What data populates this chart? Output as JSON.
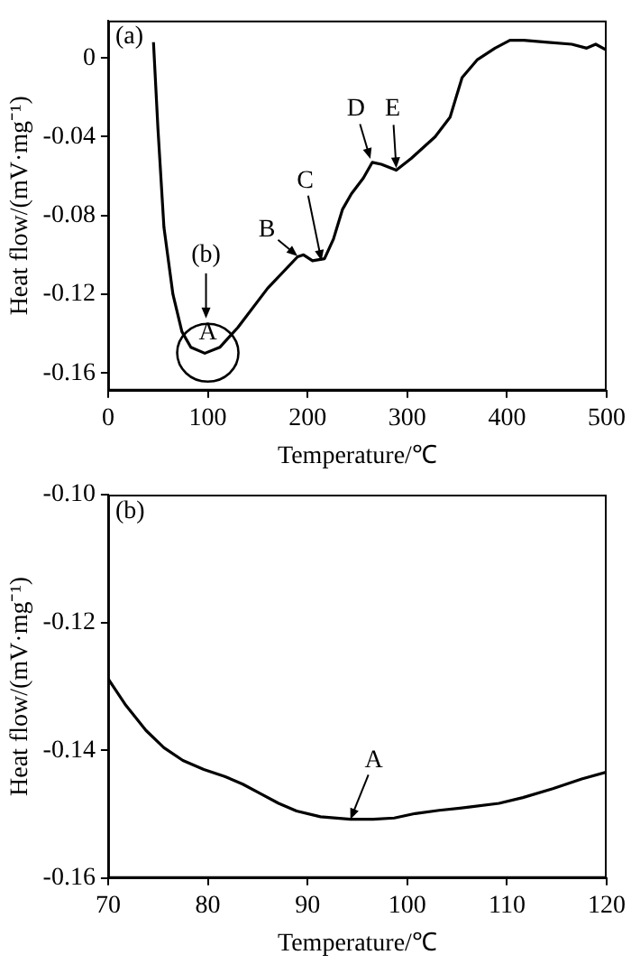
{
  "chart_data": [
    {
      "type": "line",
      "xlabel": "Temperature/℃",
      "ylabel": "Heat flow/(mV·mg⁻¹)",
      "xlim": [
        0,
        500
      ],
      "xticks": [
        0,
        100,
        200,
        300,
        400,
        500
      ],
      "ylim": [
        -0.169,
        0.019
      ],
      "yticks": [
        -0.16,
        -0.12,
        -0.08,
        -0.04,
        0
      ],
      "grid": false,
      "legend": false,
      "marker": "none",
      "line_style": "solid",
      "series": [
        {
          "color": "#000000",
          "x": [
            45.5,
            50,
            56,
            65,
            74,
            83,
            97,
            112,
            130,
            160,
            190,
            196,
            205,
            217,
            226,
            235,
            244,
            256,
            265,
            274,
            289,
            304,
            328,
            343,
            355,
            370,
            388,
            403,
            417,
            441,
            465,
            480,
            489,
            500
          ],
          "values": [
            0.008,
            -0.036,
            -0.086,
            -0.12,
            -0.139,
            -0.147,
            -0.15,
            -0.147,
            -0.137,
            -0.117,
            -0.101,
            -0.1,
            -0.103,
            -0.102,
            -0.092,
            -0.077,
            -0.069,
            -0.061,
            -0.053,
            -0.054,
            -0.057,
            -0.051,
            -0.04,
            -0.03,
            -0.01,
            -0.001,
            0.005,
            0.009,
            0.009,
            0.008,
            0.007,
            0.005,
            0.007,
            0.004
          ]
        }
      ],
      "annotations": [
        "(a)",
        "(b)",
        {
          "text": "A",
          "x": 100,
          "y": -0.147
        },
        {
          "text": "B",
          "x": 190,
          "y": -0.1006
        },
        {
          "text": "C",
          "x": 214,
          "y": -0.1031
        },
        {
          "text": "D",
          "x": 263,
          "y": -0.0513
        },
        {
          "text": "E",
          "x": 289,
          "y": -0.056
        }
      ]
    },
    {
      "type": "line",
      "xlabel": "Temperature/℃",
      "ylabel": "Heat flow/(mV·mg⁻¹)",
      "xlim": [
        70,
        120
      ],
      "xticks": [
        70,
        80,
        90,
        100,
        110,
        120
      ],
      "ylim": [
        -0.16,
        -0.1
      ],
      "yticks": [
        -0.16,
        -0.14,
        -0.12,
        {
          "value": -0.1,
          "label": "-0.10"
        }
      ],
      "grid": false,
      "legend": false,
      "marker": "none",
      "line_style": "solid",
      "series": [
        {
          "color": "#000000",
          "x": [
            70,
            71.7,
            73.8,
            75.6,
            77.5,
            79.6,
            81.7,
            83.5,
            85.3,
            87.1,
            88.9,
            91.3,
            94.3,
            96.6,
            98.7,
            100.8,
            103.2,
            106.2,
            109.2,
            111.6,
            114.6,
            117.5,
            120
          ],
          "values": [
            -0.1288,
            -0.1328,
            -0.1369,
            -0.1396,
            -0.1416,
            -0.143,
            -0.1441,
            -0.1453,
            -0.1468,
            -0.1483,
            -0.1495,
            -0.1504,
            -0.1508,
            -0.1508,
            -0.1506,
            -0.1499,
            -0.1494,
            -0.1489,
            -0.1483,
            -0.1474,
            -0.146,
            -0.1445,
            -0.1434
          ]
        }
      ],
      "annotations": [
        "(b)",
        {
          "text": "A",
          "x": 94.3,
          "y": -0.1508
        }
      ]
    }
  ]
}
